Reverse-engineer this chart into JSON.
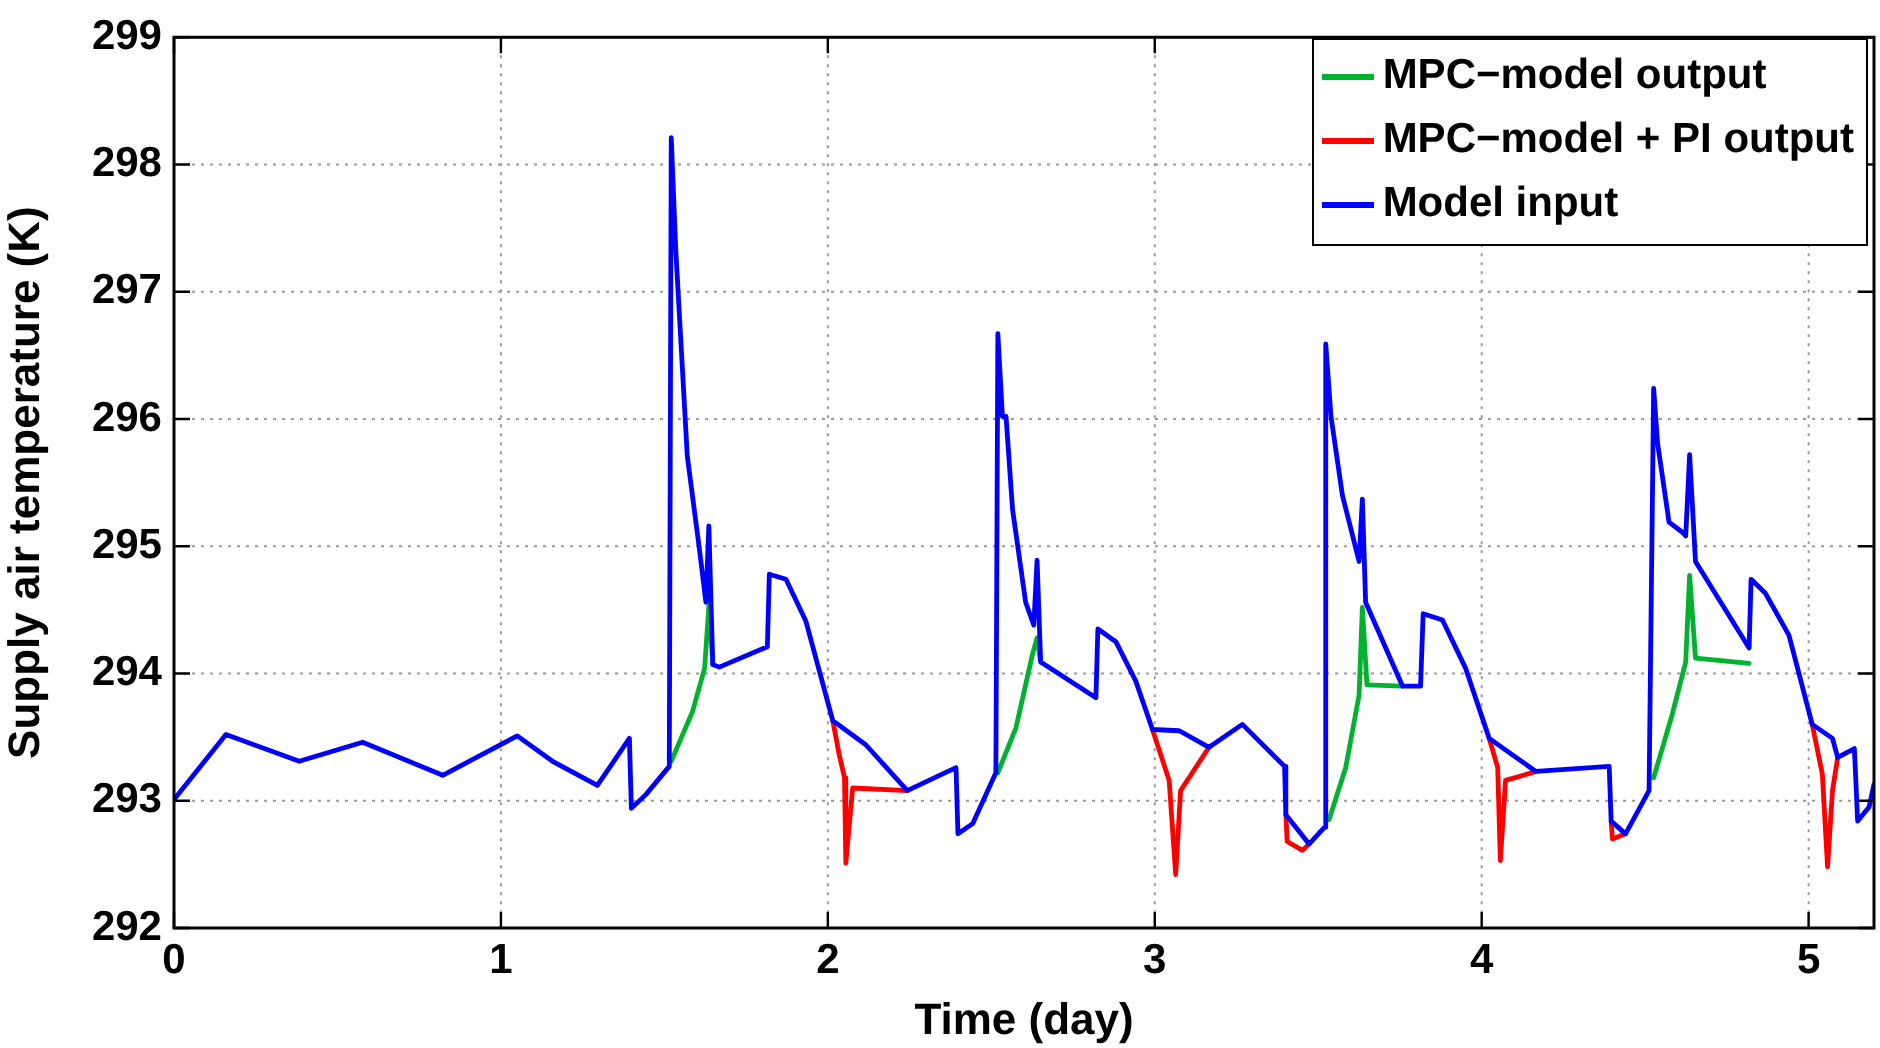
{
  "chart_data": {
    "type": "line",
    "xlabel": "Time (day)",
    "ylabel": "Supply air temperature (K)",
    "xlim": [
      0,
      5.2
    ],
    "xticks": [
      0,
      1,
      2,
      3,
      4,
      5
    ],
    "ylim": [
      292,
      299
    ],
    "yticks": [
      292,
      293,
      294,
      295,
      296,
      297,
      298,
      299
    ],
    "grid": true,
    "legend": "top right",
    "marker": "none",
    "line_style": "solid",
    "series": [
      {
        "name": "MPC−model output",
        "color": "#00b22d",
        "x": [
          1.521,
          1.586,
          1.623,
          1.637,
          1.648,
          2.1,
          2.52,
          2.575,
          2.626,
          2.64,
          2.651,
          3.1,
          3.533,
          3.584,
          3.625,
          3.635,
          3.649,
          3.758,
          4.2,
          4.526,
          4.583,
          4.624,
          4.636,
          4.654,
          4.818
        ],
        "values": [
          293.31,
          293.7,
          294.04,
          294.56,
          294.07,
          null,
          293.22,
          293.57,
          294.15,
          294.28,
          294.09,
          null,
          292.85,
          293.26,
          293.83,
          294.52,
          293.91,
          293.9,
          null,
          293.18,
          293.68,
          294.09,
          294.77,
          294.12,
          294.08
        ]
      },
      {
        "name": "MPC−model + PI output",
        "color": "#ff0000",
        "x": [
          2.015,
          2.035,
          2.051,
          2.055,
          2.076,
          2.243,
          2.6,
          2.993,
          3.044,
          3.064,
          3.079,
          3.166,
          3.3,
          3.401,
          3.405,
          3.452,
          3.472,
          3.8,
          4.023,
          4.049,
          4.057,
          4.073,
          4.166,
          4.3,
          4.396,
          4.4,
          4.44,
          4.8,
          5.011,
          5.042,
          5.058,
          5.073,
          5.089
        ],
        "values": [
          293.63,
          293.36,
          293.18,
          292.51,
          293.1,
          293.08,
          null,
          293.56,
          293.16,
          292.42,
          293.08,
          293.42,
          null,
          292.89,
          292.68,
          292.61,
          292.66,
          null,
          293.49,
          293.26,
          292.53,
          293.16,
          293.23,
          null,
          292.84,
          292.7,
          292.74,
          null,
          293.6,
          293.21,
          292.48,
          293.08,
          293.34
        ]
      },
      {
        "name": "Model input",
        "color": "#0000ff",
        "x": [
          0,
          0.159,
          0.383,
          0.577,
          0.822,
          1.05,
          1.158,
          1.295,
          1.393,
          1.399,
          1.444,
          1.515,
          1.521,
          1.535,
          1.57,
          1.607,
          1.627,
          1.636,
          1.648,
          1.668,
          1.815,
          1.821,
          1.872,
          1.933,
          2.015,
          2.116,
          2.243,
          2.392,
          2.398,
          2.443,
          2.514,
          2.52,
          2.534,
          2.545,
          2.565,
          2.605,
          2.63,
          2.64,
          2.651,
          2.82,
          2.826,
          2.881,
          2.942,
          2.993,
          3.075,
          3.166,
          3.268,
          3.397,
          3.401,
          3.472,
          3.519,
          3.523,
          3.539,
          3.574,
          3.625,
          3.635,
          3.645,
          3.758,
          3.813,
          3.821,
          3.88,
          3.951,
          4.023,
          4.166,
          4.39,
          4.396,
          4.44,
          4.512,
          4.526,
          4.538,
          4.573,
          4.614,
          4.624,
          4.636,
          4.654,
          4.818,
          4.824,
          4.868,
          4.94,
          5.011,
          5.073,
          5.089,
          5.14,
          5.15,
          5.185,
          5.2
        ],
        "values": [
          293.01,
          293.52,
          293.31,
          293.46,
          293.2,
          293.51,
          293.31,
          293.12,
          293.49,
          292.94,
          293.05,
          293.27,
          298.21,
          297.32,
          295.71,
          294.98,
          294.56,
          295.16,
          294.07,
          294.05,
          294.21,
          294.78,
          294.74,
          294.41,
          293.63,
          293.44,
          293.08,
          293.26,
          292.74,
          292.82,
          293.22,
          296.67,
          296.02,
          296.02,
          295.29,
          294.56,
          294.38,
          294.89,
          294.09,
          293.81,
          294.35,
          294.25,
          293.94,
          293.56,
          293.55,
          293.42,
          293.6,
          293.27,
          292.89,
          292.66,
          292.79,
          296.59,
          296.02,
          295.4,
          294.88,
          295.37,
          294.56,
          293.9,
          293.9,
          294.47,
          294.42,
          294.04,
          293.49,
          293.23,
          293.27,
          292.84,
          292.74,
          293.08,
          296.24,
          295.81,
          295.19,
          295.11,
          295.08,
          295.72,
          294.88,
          294.2,
          294.74,
          294.63,
          294.3,
          293.6,
          293.49,
          293.34,
          293.41,
          292.84,
          292.95,
          293.13
        ]
      }
    ]
  }
}
